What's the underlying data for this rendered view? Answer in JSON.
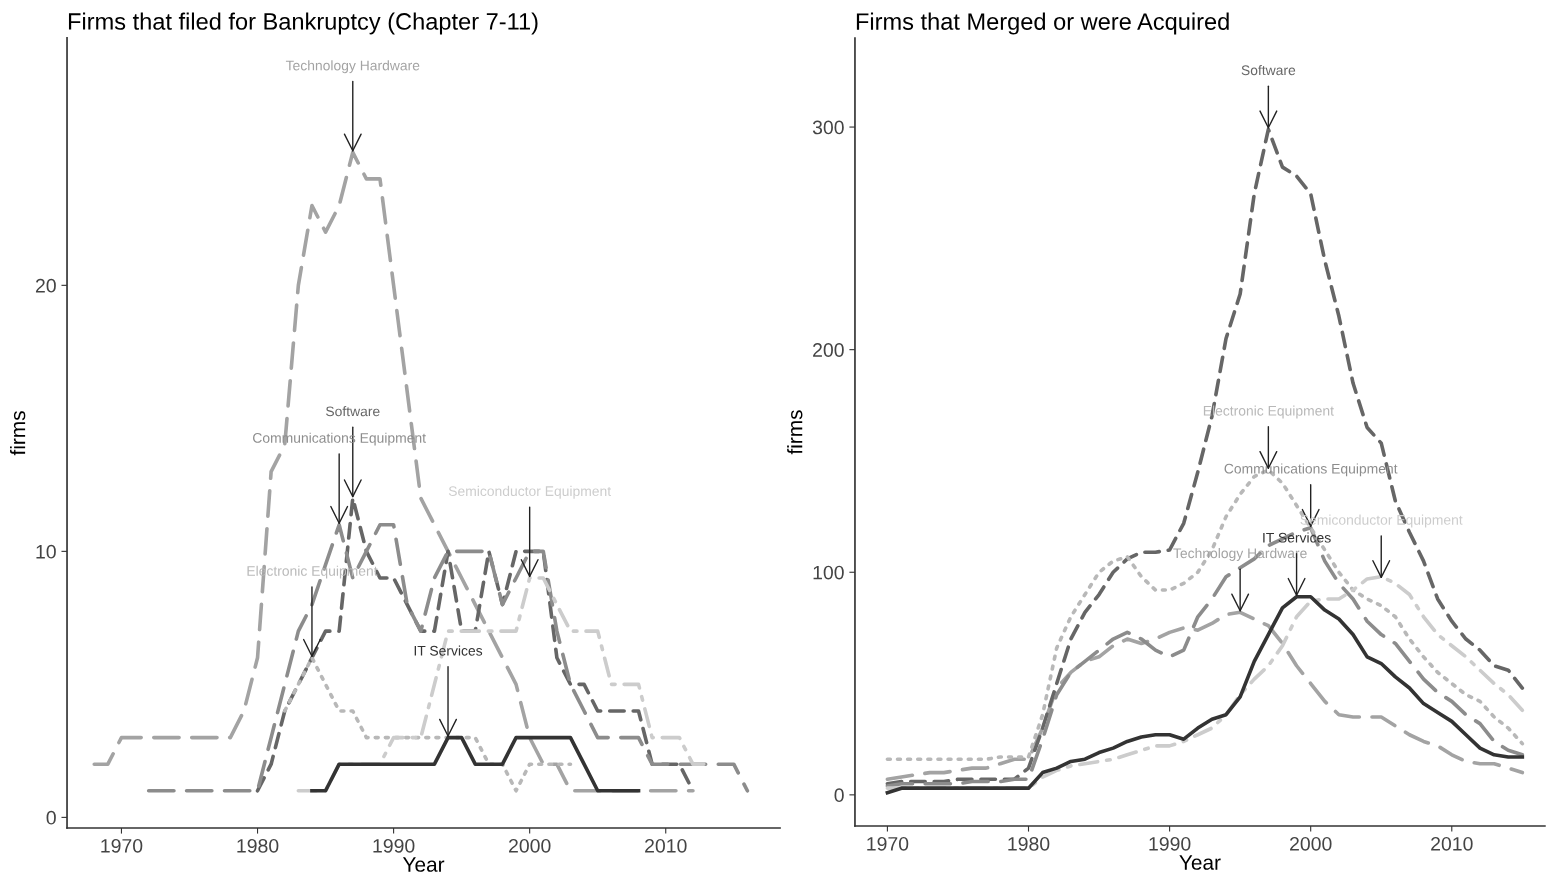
{
  "chart_data": [
    {
      "type": "line",
      "title": "Firms that filed for Bankruptcy (Chapter 7-11)",
      "xlabel": "Year",
      "ylabel": "firms",
      "xlim": [
        1966,
        2018.4
      ],
      "ylim": [
        -0.4,
        29.3
      ],
      "xticks": [
        1970,
        1980,
        1990,
        2000,
        2010
      ],
      "yticks": [
        0,
        10,
        20
      ],
      "series": [
        {
          "color": "#a3a3a3",
          "line_style": "longdash",
          "x": [
            1968,
            1969,
            1970,
            1971,
            1972,
            1973,
            1974,
            1975,
            1976,
            1977,
            1978,
            1979,
            1980,
            1981,
            1982,
            1983,
            1984,
            1985,
            1986,
            1987,
            1988,
            1989,
            1990,
            1991,
            1992,
            1993,
            1994,
            1995,
            1996,
            1997,
            1998,
            1999,
            2000,
            2001,
            2002,
            2003,
            2004,
            2005,
            2006,
            2007,
            2008,
            2009,
            2010,
            2011,
            2012
          ],
          "values": [
            2,
            2,
            3,
            3,
            3,
            3,
            3,
            3,
            3,
            3,
            3,
            4,
            6,
            13,
            14,
            20,
            23,
            22,
            23,
            25,
            24,
            24,
            20,
            16,
            12,
            11,
            10,
            9,
            8,
            7,
            6,
            5,
            3,
            2,
            2,
            1,
            1,
            1,
            1,
            1,
            1,
            1,
            1,
            1,
            1
          ]
        },
        {
          "color": "#666666",
          "line_style": "dashed",
          "x": [
            1980,
            1981,
            1982,
            1983,
            1984,
            1985,
            1986,
            1987,
            1988,
            1989,
            1990,
            1991,
            1992,
            1993,
            1994,
            1995,
            1996,
            1997,
            1998,
            1999,
            2000,
            2001,
            2002,
            2003,
            2004,
            2005,
            2006,
            2007,
            2008,
            2009,
            2010,
            2011,
            2012
          ],
          "values": [
            1,
            2,
            4,
            5,
            6,
            7,
            7,
            12,
            10,
            9,
            9,
            8,
            7,
            7,
            10,
            7,
            7,
            10,
            8,
            10,
            10,
            10,
            6,
            5,
            5,
            4,
            4,
            4,
            4,
            2,
            2,
            2,
            1
          ]
        },
        {
          "color": "#8c8c8c",
          "line_style": "longdash",
          "x": [
            1972,
            1973,
            1974,
            1975,
            1976,
            1977,
            1978,
            1979,
            1980,
            1981,
            1982,
            1983,
            1984,
            1985,
            1986,
            1987,
            1988,
            1989,
            1990,
            1991,
            1992,
            1993,
            1994,
            1995,
            1996,
            1997,
            1998,
            1999,
            2000,
            2001,
            2002,
            2003,
            2004,
            2005,
            2006,
            2007,
            2008,
            2009,
            2010,
            2011,
            2012,
            2013,
            2014,
            2015,
            2016
          ],
          "values": [
            1,
            1,
            1,
            1,
            1,
            1,
            1,
            1,
            1,
            3,
            5,
            7,
            8,
            9.5,
            11,
            9,
            10,
            11,
            11,
            8,
            7,
            9,
            10,
            10,
            10,
            10,
            8,
            9,
            10,
            10,
            7,
            5,
            4,
            3,
            3,
            3,
            3,
            2,
            2,
            2,
            2,
            2,
            2,
            2,
            1
          ]
        },
        {
          "color": "#b8b8b8",
          "line_style": "dotted",
          "x": [
            1982,
            1983,
            1984,
            1985,
            1986,
            1987,
            1988,
            1989,
            1990,
            1991,
            1992,
            1993,
            1994,
            1995,
            1996,
            1997,
            1998,
            1999,
            2000,
            2001,
            2002,
            2003
          ],
          "values": [
            4,
            5,
            6,
            5,
            4,
            4,
            3,
            3,
            3,
            3,
            3,
            3,
            3,
            3,
            3,
            2,
            2,
            1,
            2,
            2,
            2,
            2
          ]
        },
        {
          "color": "#cccccc",
          "line_style": "dashdot",
          "x": [
            1983,
            1984,
            1985,
            1986,
            1987,
            1988,
            1989,
            1990,
            1991,
            1992,
            1993,
            1994,
            1995,
            1996,
            1997,
            1998,
            1999,
            2000,
            2001,
            2002,
            2003,
            2004,
            2005,
            2006,
            2007,
            2008,
            2009,
            2010,
            2011,
            2012,
            2013
          ],
          "values": [
            1,
            1,
            1,
            2,
            2,
            2,
            2,
            3,
            3,
            3,
            5,
            7,
            7,
            7,
            7,
            7,
            7,
            9,
            9,
            8,
            7,
            7,
            7,
            5,
            5,
            5,
            3,
            3,
            3,
            2,
            2
          ]
        },
        {
          "color": "#333333",
          "line_style": "solid",
          "x": [
            1984,
            1985,
            1986,
            1987,
            1988,
            1989,
            1990,
            1991,
            1992,
            1993,
            1994,
            1995,
            1996,
            1997,
            1998,
            1999,
            2000,
            2001,
            2002,
            2003,
            2004,
            2005,
            2006,
            2007,
            2008
          ],
          "values": [
            1,
            1,
            2,
            2,
            2,
            2,
            2,
            2,
            2,
            2,
            3,
            3,
            2,
            2,
            2,
            3,
            3,
            3,
            3,
            3,
            2,
            1,
            1,
            1,
            1
          ]
        }
      ],
      "annotations": [
        {
          "text": "Technology Hardware",
          "x": 1987,
          "y": 25
        },
        {
          "text": "Software",
          "x": 1987,
          "y": 12
        },
        {
          "text": "Communications Equipment",
          "x": 1986,
          "y": 11
        },
        {
          "text": "Electronic Equipment",
          "x": 1984,
          "y": 6
        },
        {
          "text": "Semiconductor Equipment",
          "x": 2000,
          "y": 9
        },
        {
          "text": "IT Services",
          "x": 1994,
          "y": 3
        }
      ]
    },
    {
      "type": "line",
      "title": "Firms that Merged or were Acquired",
      "xlabel": "Year",
      "ylabel": "firms",
      "xlim": [
        1967.7,
        2016.6
      ],
      "ylim": [
        -14,
        340
      ],
      "xticks": [
        1970,
        1980,
        1990,
        2000,
        2010
      ],
      "yticks": [
        0,
        100,
        200,
        300
      ],
      "series": [
        {
          "color": "#a3a3a3",
          "line_style": "longdash",
          "x": [
            1970,
            1971,
            1972,
            1973,
            1974,
            1975,
            1976,
            1977,
            1978,
            1979,
            1980,
            1981,
            1982,
            1983,
            1984,
            1985,
            1986,
            1987,
            1988,
            1989,
            1990,
            1991,
            1992,
            1993,
            1994,
            1995,
            1996,
            1997,
            1998,
            1999,
            2000,
            2001,
            2002,
            2003,
            2004,
            2005,
            2006,
            2007,
            2008,
            2009,
            2010,
            2011,
            2012,
            2013,
            2014,
            2015
          ],
          "values": [
            7,
            8,
            9,
            10,
            10,
            11,
            12,
            12,
            14,
            16,
            16,
            30,
            48,
            55,
            60,
            62,
            67,
            70,
            68,
            70,
            73,
            75,
            74,
            77,
            81,
            82,
            79,
            76,
            68,
            58,
            50,
            42,
            36,
            35,
            35,
            35,
            31,
            27,
            24,
            22,
            18,
            15,
            14,
            14,
            12,
            10
          ]
        },
        {
          "color": "#666666",
          "line_style": "dashed",
          "x": [
            1970,
            1971,
            1972,
            1973,
            1974,
            1975,
            1976,
            1977,
            1978,
            1979,
            1980,
            1981,
            1982,
            1983,
            1984,
            1985,
            1986,
            1987,
            1988,
            1989,
            1990,
            1991,
            1992,
            1993,
            1994,
            1995,
            1996,
            1997,
            1998,
            1999,
            2000,
            2001,
            2002,
            2003,
            2004,
            2005,
            2006,
            2007,
            2008,
            2009,
            2010,
            2011,
            2012,
            2013,
            2014,
            2015
          ],
          "values": [
            5,
            6,
            6,
            6,
            6,
            7,
            7,
            7,
            7,
            7,
            12,
            30,
            50,
            70,
            82,
            90,
            100,
            106,
            109,
            109,
            110,
            122,
            145,
            170,
            205,
            225,
            270,
            299,
            282,
            278,
            270,
            240,
            215,
            185,
            165,
            158,
            132,
            118,
            105,
            88,
            78,
            70,
            65,
            58,
            56,
            48
          ]
        },
        {
          "color": "#8c8c8c",
          "line_style": "longdash",
          "x": [
            1970,
            1971,
            1972,
            1973,
            1974,
            1975,
            1976,
            1977,
            1978,
            1979,
            1980,
            1981,
            1982,
            1983,
            1984,
            1985,
            1986,
            1987,
            1988,
            1989,
            1990,
            1991,
            1992,
            1993,
            1994,
            1995,
            1996,
            1997,
            1998,
            1999,
            2000,
            2001,
            2002,
            2003,
            2004,
            2005,
            2006,
            2007,
            2008,
            2009,
            2010,
            2011,
            2012,
            2013,
            2014,
            2015
          ],
          "values": [
            4,
            5,
            5,
            5,
            5,
            5,
            6,
            6,
            6,
            7,
            7,
            25,
            45,
            55,
            60,
            65,
            70,
            73,
            70,
            65,
            62,
            65,
            80,
            88,
            98,
            102,
            106,
            112,
            115,
            118,
            120,
            105,
            95,
            88,
            78,
            72,
            68,
            60,
            52,
            46,
            42,
            36,
            32,
            24,
            20,
            18
          ]
        },
        {
          "color": "#b8b8b8",
          "line_style": "dotted",
          "x": [
            1970,
            1971,
            1972,
            1973,
            1974,
            1975,
            1976,
            1977,
            1978,
            1979,
            1980,
            1981,
            1982,
            1983,
            1984,
            1985,
            1986,
            1987,
            1988,
            1989,
            1990,
            1991,
            1992,
            1993,
            1994,
            1995,
            1996,
            1997,
            1998,
            1999,
            2000,
            2001,
            2002,
            2003,
            2004,
            2005,
            2006,
            2007,
            2008,
            2009,
            2010,
            2011,
            2012,
            2013,
            2014,
            2015
          ],
          "values": [
            16,
            16,
            16,
            16,
            16,
            16,
            16,
            16,
            17,
            17,
            17,
            36,
            66,
            80,
            90,
            100,
            105,
            107,
            98,
            92,
            92,
            95,
            100,
            110,
            125,
            135,
            143,
            146,
            140,
            130,
            120,
            110,
            100,
            92,
            88,
            85,
            80,
            70,
            62,
            55,
            50,
            45,
            42,
            35,
            30,
            23
          ]
        },
        {
          "color": "#cccccc",
          "line_style": "dashdot",
          "x": [
            1970,
            1971,
            1972,
            1973,
            1974,
            1975,
            1976,
            1977,
            1978,
            1979,
            1980,
            1981,
            1982,
            1983,
            1984,
            1985,
            1986,
            1987,
            1988,
            1989,
            1990,
            1991,
            1992,
            1993,
            1994,
            1995,
            1996,
            1997,
            1998,
            1999,
            2000,
            2001,
            2002,
            2003,
            2004,
            2005,
            2006,
            2007,
            2008,
            2009,
            2010,
            2011,
            2012,
            2013,
            2014,
            2015
          ],
          "values": [
            3,
            3,
            3,
            3,
            3,
            3,
            3,
            3,
            3,
            3,
            3,
            8,
            11,
            13,
            14,
            15,
            16,
            18,
            20,
            22,
            22,
            24,
            27,
            30,
            36,
            45,
            52,
            58,
            67,
            80,
            87,
            88,
            88,
            92,
            97,
            98,
            95,
            90,
            80,
            72,
            67,
            62,
            56,
            50,
            45,
            38
          ]
        },
        {
          "color": "#333333",
          "line_style": "solid",
          "x": [
            1970,
            1971,
            1972,
            1973,
            1974,
            1975,
            1976,
            1977,
            1978,
            1979,
            1980,
            1981,
            1982,
            1983,
            1984,
            1985,
            1986,
            1987,
            1988,
            1989,
            1990,
            1991,
            1992,
            1993,
            1994,
            1995,
            1996,
            1997,
            1998,
            1999,
            2000,
            2001,
            2002,
            2003,
            2004,
            2005,
            2006,
            2007,
            2008,
            2009,
            2010,
            2011,
            2012,
            2013,
            2014,
            2015
          ],
          "values": [
            1,
            3,
            3,
            3,
            3,
            3,
            3,
            3,
            3,
            3,
            3,
            10,
            12,
            15,
            16,
            19,
            21,
            24,
            26,
            27,
            27,
            25,
            30,
            34,
            36,
            44,
            60,
            72,
            84,
            89,
            89,
            83,
            79,
            72,
            62,
            59,
            53,
            48,
            41,
            37,
            33,
            27,
            21,
            18,
            17,
            17
          ]
        }
      ],
      "annotations": [
        {
          "text": "Technology Hardware",
          "x": 1995,
          "y": 82
        },
        {
          "text": "Software",
          "x": 1997,
          "y": 299
        },
        {
          "text": "Communications Equipment",
          "x": 2000,
          "y": 120
        },
        {
          "text": "Electronic Equipment",
          "x": 1997,
          "y": 146
        },
        {
          "text": "Semiconductor Equipment",
          "x": 2005,
          "y": 97
        },
        {
          "text": "IT Services",
          "x": 1999,
          "y": 89
        }
      ]
    }
  ]
}
